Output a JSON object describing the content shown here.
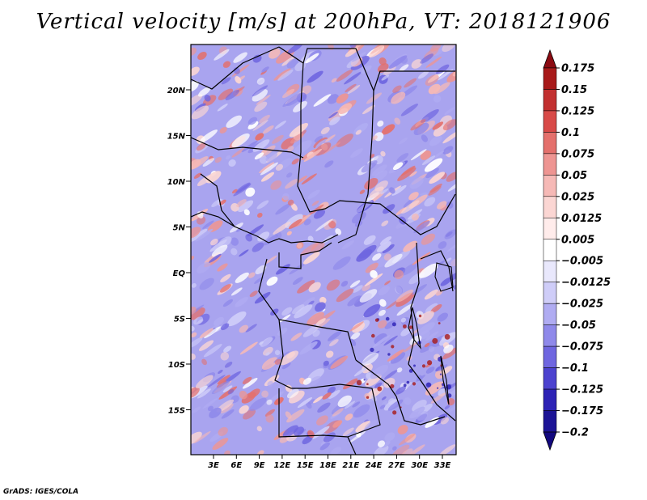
{
  "title": "Vertical velocity [m/s] at 200hPa, VT: 2018121906",
  "credit": "GrADS: IGES/COLA",
  "map": {
    "lat_labels": [
      "20N",
      "15N",
      "10N",
      "5N",
      "EQ",
      "5S",
      "10S",
      "15S"
    ],
    "lon_labels": [
      "3E",
      "6E",
      "9E",
      "12E",
      "15E",
      "18E",
      "21E",
      "24E",
      "27E",
      "30E",
      "33E"
    ]
  },
  "colorbar": {
    "labels": [
      "0.175",
      "0.15",
      "0.125",
      "0.1",
      "0.075",
      "0.05",
      "0.025",
      "0.0125",
      "0.005",
      "−0.005",
      "−0.0125",
      "−0.025",
      "−0.05",
      "−0.075",
      "−0.1",
      "−0.125",
      "−0.175",
      "−0.2"
    ],
    "colors": [
      "#8b0b12",
      "#a81a1a",
      "#c23030",
      "#d84a48",
      "#e4706c",
      "#ee9592",
      "#f6b9b6",
      "#fbd6d3",
      "#ffeceb",
      "#ffffff",
      "#e9e8fc",
      "#cfcdf8",
      "#b0acf2",
      "#8f89ea",
      "#6f66e0",
      "#4c42cf",
      "#2d22b5",
      "#1c1496",
      "#12087e"
    ]
  }
}
